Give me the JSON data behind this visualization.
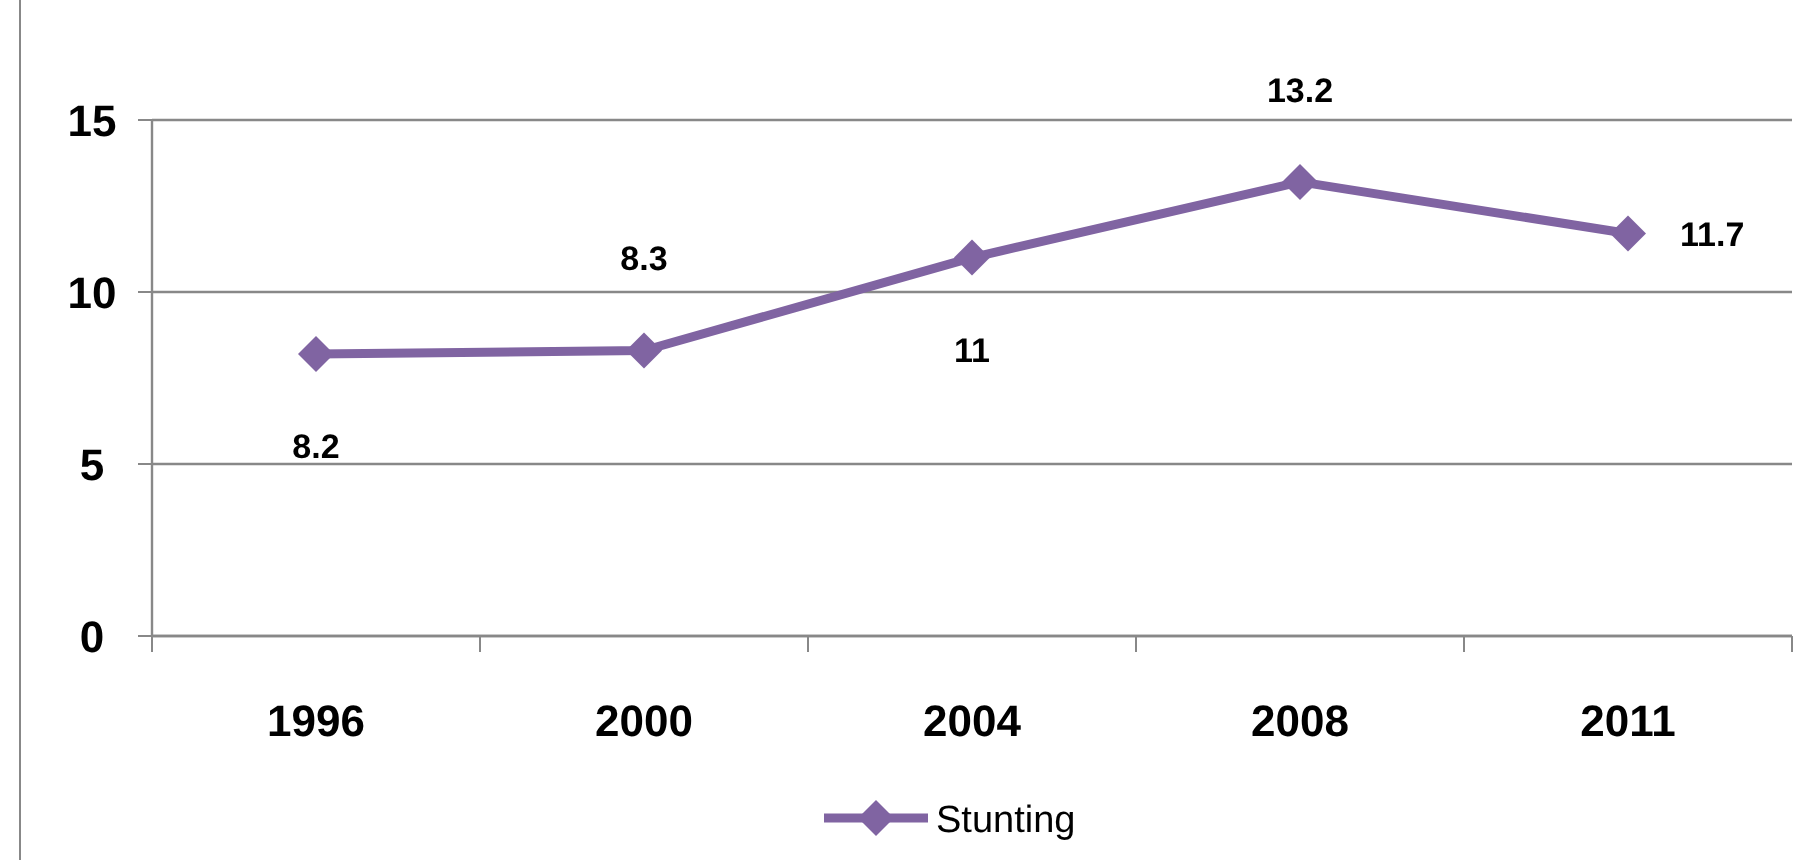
{
  "chart_data": {
    "type": "line",
    "categories": [
      "1996",
      "2000",
      "2004",
      "2008",
      "2011"
    ],
    "series": [
      {
        "name": "Stunting",
        "color": "#8064a2",
        "values": [
          8.2,
          8.3,
          11,
          13.2,
          11.7
        ]
      }
    ],
    "ylim": [
      0,
      15
    ],
    "yticks": [
      0,
      5,
      10,
      15
    ],
    "grid": "y",
    "legend": "bottom",
    "marker": "diamond",
    "data_labels": true
  }
}
